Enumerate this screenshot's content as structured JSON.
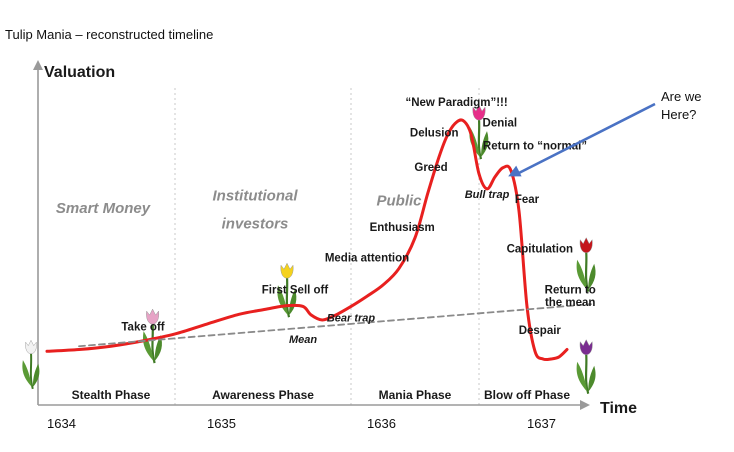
{
  "chart_data": {
    "type": "line",
    "title": "Tulip Mania – reconstructed timeline",
    "ylabel": "Valuation",
    "xlabel": "Time",
    "xlim": [
      1634,
      1637.3
    ],
    "ylim": [
      0,
      100
    ],
    "x_ticks": [
      "1634",
      "1635",
      "1636",
      "1637"
    ],
    "grid": false,
    "series": [
      {
        "name": "",
        "color": "#e8201f",
        "points": [
          [
            1634.0,
            3.8
          ],
          [
            1634.2,
            4.5
          ],
          [
            1634.4,
            5.8
          ],
          [
            1634.6,
            7.9
          ],
          [
            1634.8,
            10.6
          ],
          [
            1635.0,
            14.5
          ],
          [
            1635.2,
            18.3
          ],
          [
            1635.35,
            20.1
          ],
          [
            1635.5,
            21.7
          ],
          [
            1635.6,
            21.4
          ],
          [
            1635.65,
            18.1
          ],
          [
            1635.72,
            16.1
          ],
          [
            1635.8,
            17.9
          ],
          [
            1635.9,
            21.4
          ],
          [
            1636.0,
            25.4
          ],
          [
            1636.1,
            29.8
          ],
          [
            1636.2,
            36.3
          ],
          [
            1636.3,
            48.3
          ],
          [
            1636.38,
            65.8
          ],
          [
            1636.45,
            80.0
          ],
          [
            1636.5,
            88.2
          ],
          [
            1636.55,
            93.1
          ],
          [
            1636.6,
            94.3
          ],
          [
            1636.65,
            89.0
          ],
          [
            1636.7,
            73.4
          ],
          [
            1636.75,
            67.5
          ],
          [
            1636.8,
            72.2
          ],
          [
            1636.85,
            75.8
          ],
          [
            1636.9,
            74.6
          ],
          [
            1636.95,
            58.8
          ],
          [
            1637.0,
            21.4
          ],
          [
            1637.05,
            3.8
          ],
          [
            1637.1,
            0.8
          ],
          [
            1637.15,
            0.8
          ],
          [
            1637.2,
            1.6
          ],
          [
            1637.25,
            4.5
          ]
        ]
      },
      {
        "name": "",
        "color": "#8a8a8a",
        "dashed": true,
        "points": [
          [
            1634.2,
            5.8
          ],
          [
            1637.4,
            22.3
          ]
        ]
      }
    ],
    "phases": [
      {
        "label": "Stealth Phase",
        "from": 1634.0,
        "to": 1634.8
      },
      {
        "label": "Awareness Phase",
        "from": 1634.8,
        "to": 1635.9
      },
      {
        "label": "Mania Phase",
        "from": 1635.9,
        "to": 1636.7
      },
      {
        "label": "Blow off Phase",
        "from": 1636.7,
        "to": 1637.3
      }
    ],
    "participants": [
      {
        "label": "Smart Money",
        "x": 1634.35,
        "y": 58
      },
      {
        "label": "Institutional",
        "x": 1635.3,
        "y": 63
      },
      {
        "label": "investors",
        "x": 1635.3,
        "y": 52
      },
      {
        "label": "Public",
        "x": 1636.2,
        "y": 61
      }
    ],
    "annotations": [
      {
        "text": "Take off",
        "x": 1634.6,
        "y": 12,
        "italic": false
      },
      {
        "text": "First Sell off",
        "x": 1635.55,
        "y": 26.5,
        "italic": false
      },
      {
        "text": "Bear trap",
        "x": 1635.9,
        "y": 15.5,
        "italic": true
      },
      {
        "text": "Mean",
        "x": 1635.6,
        "y": 7,
        "italic": true
      },
      {
        "text": "Media attention",
        "x": 1636.0,
        "y": 39,
        "italic": false
      },
      {
        "text": "Enthusiasm",
        "x": 1636.22,
        "y": 51,
        "italic": false
      },
      {
        "text": "Greed",
        "x": 1636.4,
        "y": 74.5,
        "italic": false
      },
      {
        "text": "Delusion",
        "x": 1636.42,
        "y": 88,
        "italic": false
      },
      {
        "text": "“New Paradigm”!!!",
        "x": 1636.56,
        "y": 100,
        "italic": false
      },
      {
        "text": "Denial",
        "x": 1636.83,
        "y": 92,
        "italic": false
      },
      {
        "text": "Return to “normal”",
        "x": 1637.05,
        "y": 83,
        "italic": false
      },
      {
        "text": "Bull trap",
        "x": 1636.75,
        "y": 64,
        "italic": true
      },
      {
        "text": "Fear",
        "x": 1637.0,
        "y": 62,
        "italic": false
      },
      {
        "text": "Capitulation",
        "x": 1637.08,
        "y": 42.5,
        "italic": false
      },
      {
        "text": "Return to",
        "x": 1637.27,
        "y": 26.5,
        "italic": false
      },
      {
        "text": "the mean",
        "x": 1637.27,
        "y": 21.5,
        "italic": false
      },
      {
        "text": "Despair",
        "x": 1637.08,
        "y": 10.5,
        "italic": false
      }
    ],
    "callout": {
      "lines": [
        "Are we",
        "Here?"
      ],
      "points_to": [
        1636.87,
        72
      ],
      "arrow_color": "#4a72c4"
    },
    "tulips": [
      {
        "x": 1633.9,
        "y": 6,
        "petal": "#f2f2f2",
        "scale": 0.9
      },
      {
        "x": 1634.66,
        "y": 18,
        "petal": "#e7a3c6",
        "scale": 1.0
      },
      {
        "x": 1635.5,
        "y": 36,
        "petal": "#f4d21c",
        "scale": 1.0
      },
      {
        "x": 1636.7,
        "y": 98,
        "petal": "#e62e8a",
        "scale": 1.0
      },
      {
        "x": 1637.37,
        "y": 46,
        "petal": "#c4161c",
        "scale": 1.0
      },
      {
        "x": 1637.37,
        "y": 6,
        "petal": "#7a2d90",
        "scale": 1.0
      }
    ]
  }
}
